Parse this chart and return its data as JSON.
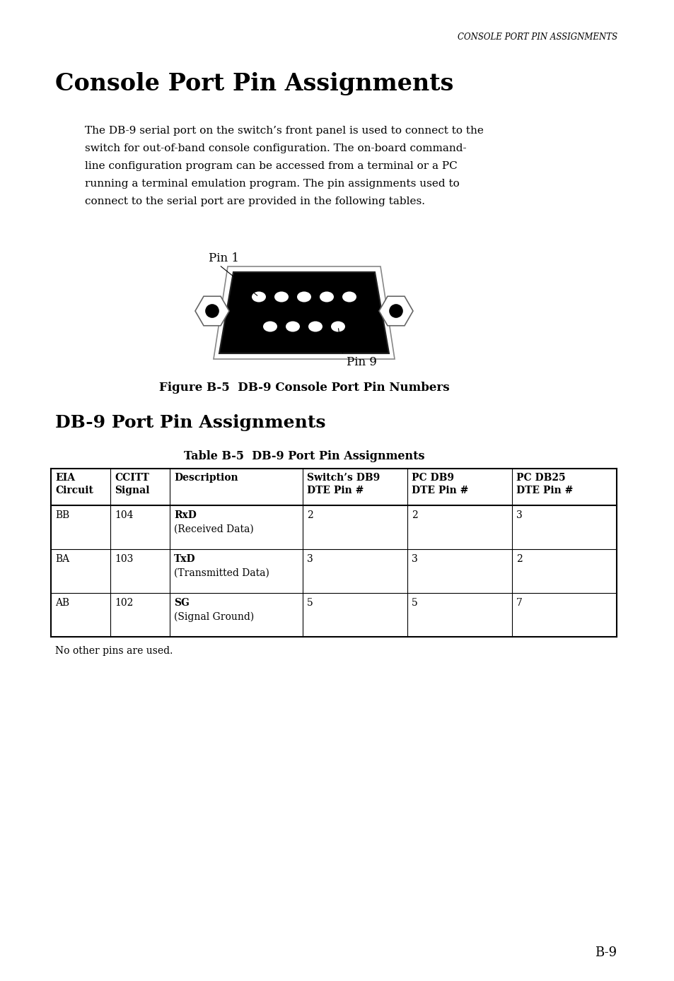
{
  "page_header": "CONSOLE PORT PIN ASSIGNMENTS",
  "main_title": "Console Port Pin Assignments",
  "body_text": "The DB-9 serial port on the switch’s front panel is used to connect to the\nswitch for out-of-band console configuration. The on-board command-\nline configuration program can be accessed from a terminal or a PC\nrunning a terminal emulation program. The pin assignments used to\nconnect to the serial port are provided in the following tables.",
  "pin1_label": "Pin 1",
  "pin9_label": "Pin 9",
  "figure_caption": "Figure B-5  DB-9 Console Port Pin Numbers",
  "section_title": "DB-9 Port Pin Assignments",
  "table_title": "Table B-5  DB-9 Port Pin Assignments",
  "table_headers": [
    "EIA\nCircuit",
    "CCITT\nSignal",
    "Description",
    "Switch’s DB9\nDTE Pin #",
    "PC DB9\nDTE Pin #",
    "PC DB25\nDTE Pin #"
  ],
  "table_rows": [
    [
      "BB",
      "104",
      "RxD\n(Received Data)",
      "2",
      "2",
      "3"
    ],
    [
      "BA",
      "103",
      "TxD\n(Transmitted Data)",
      "3",
      "3",
      "2"
    ],
    [
      "AB",
      "102",
      "SG\n(Signal Ground)",
      "5",
      "5",
      "7"
    ]
  ],
  "footer_note": "No other pins are used.",
  "page_number": "B-9",
  "bg_color": "#ffffff",
  "text_color": "#000000",
  "col_props": [
    0.105,
    0.105,
    0.235,
    0.185,
    0.185,
    0.185
  ]
}
